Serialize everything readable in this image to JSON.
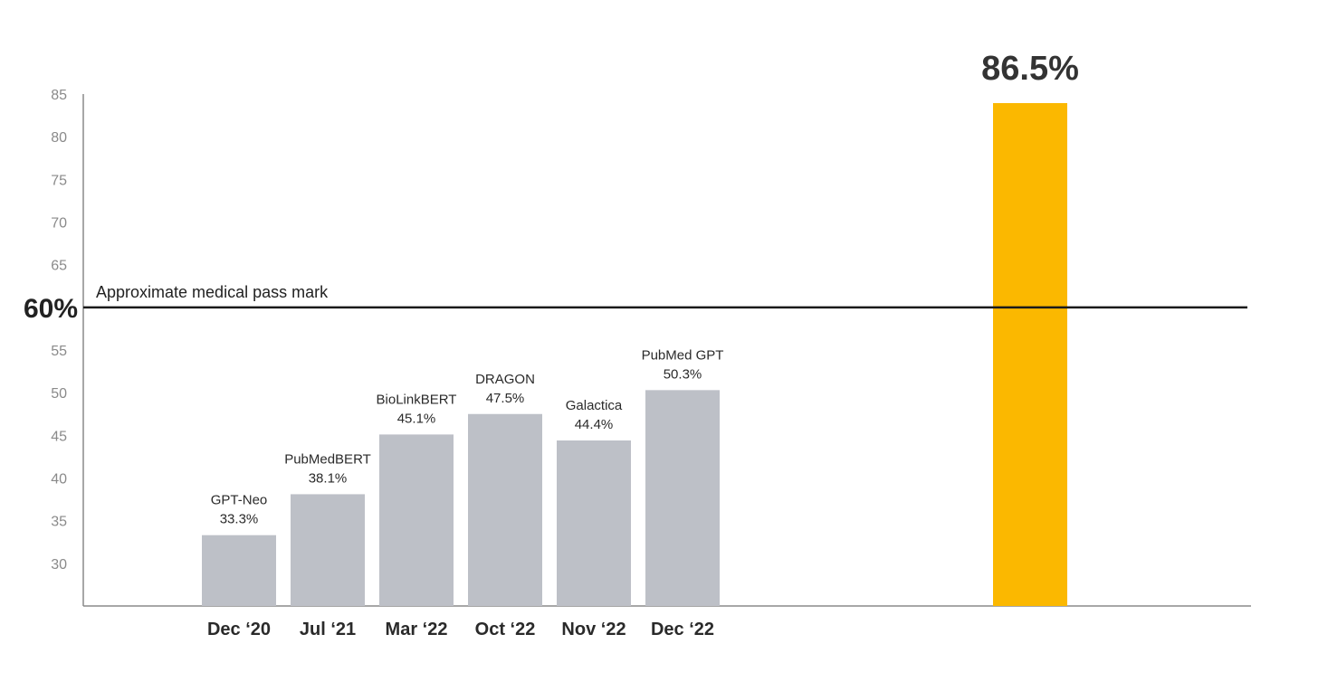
{
  "chart_data": {
    "type": "bar",
    "ylim": [
      25,
      85
    ],
    "yticks": [
      30,
      35,
      40,
      45,
      50,
      55,
      65,
      70,
      75,
      80,
      85
    ],
    "grid": false,
    "categories": [
      "Dec ‘20",
      "Jul ‘21",
      "Mar ‘22",
      "Oct ‘22",
      "Nov ‘22",
      "Dec ‘22"
    ],
    "bars": [
      {
        "category": "Dec ‘20",
        "name": "GPT-Neo",
        "value": 33.3,
        "label": "33.3%"
      },
      {
        "category": "Jul ‘21",
        "name": "PubMedBERT",
        "value": 38.1,
        "label": "38.1%"
      },
      {
        "category": "Mar ‘22",
        "name": "BioLinkBERT",
        "value": 45.1,
        "label": "45.1%"
      },
      {
        "category": "Oct ‘22",
        "name": "DRAGON",
        "value": 47.5,
        "label": "47.5%"
      },
      {
        "category": "Nov ‘22",
        "name": "Galactica",
        "value": 44.4,
        "label": "44.4%"
      },
      {
        "category": "Dec ‘22",
        "name": "PubMed GPT",
        "value": 50.3,
        "label": "50.3%"
      }
    ],
    "bar_color": "#bdc0c7",
    "highlight_bar": {
      "value": 86.5,
      "label": "86.5%",
      "color": "#fbb800"
    },
    "reference_line": {
      "value": 60,
      "value_label": "60%",
      "label": "Approximate medical pass mark",
      "color": "#1a1a1a"
    },
    "axis_color": "#8a8a8a"
  }
}
